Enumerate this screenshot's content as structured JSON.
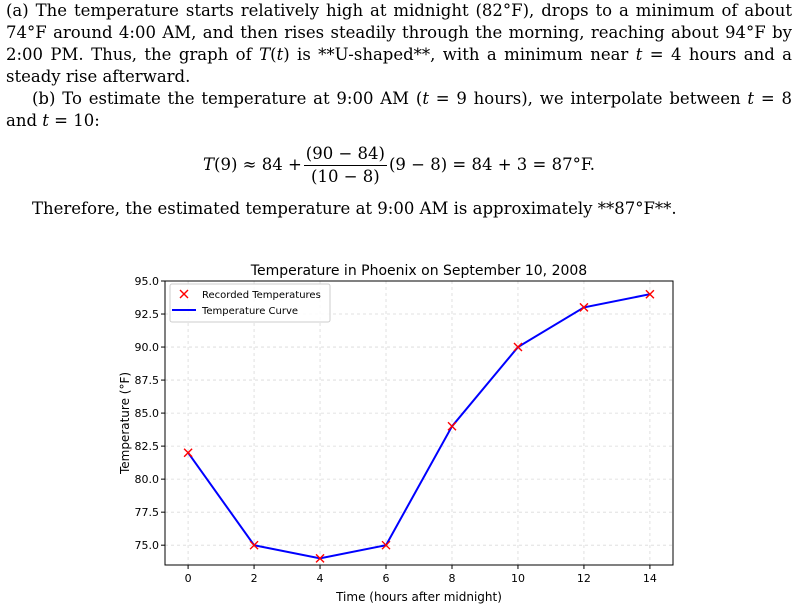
{
  "text": {
    "part_a_prefix": "(a) The temperature starts relatively high at midnight (82°F), drops to a minimum of about 74°F around 4:00 AM, and then rises steadily through the morning, reaching about 94°F by 2:00 PM. Thus, the graph of ",
    "part_a_T": "T",
    "part_a_t_paren_open": "(",
    "part_a_t": "t",
    "part_a_t_paren_close": ")",
    "part_a_mid": " is **U-shaped**, with a minimum near ",
    "part_a_t2": "t",
    "part_a_suffix": " = 4 hours and a steady rise afterward.",
    "part_b_prefix": "(b) To estimate the temperature at 9:00 AM (",
    "part_b_t1": "t",
    "part_b_mid1": " = 9 hours), we interpolate between ",
    "part_b_t2": "t",
    "part_b_mid2": " = 8 and ",
    "part_b_t3": "t",
    "part_b_suffix": " = 10:",
    "eq_T": "T",
    "eq_left": "(9) ≈ 84 +",
    "eq_num": "(90 − 84)",
    "eq_den": "(10 − 8)",
    "eq_right": "(9 − 8) = 84 + 3 = 87°F.",
    "conclusion": "Therefore, the estimated temperature at 9:00 AM is approximately **87°F**."
  },
  "chart_data": {
    "type": "line",
    "title": "Temperature in Phoenix on September 10, 2008",
    "xlabel": "Time (hours after midnight)",
    "ylabel": "Temperature (°F)",
    "x": [
      0,
      2,
      4,
      6,
      8,
      10,
      12,
      14
    ],
    "y": [
      82,
      75,
      74,
      75,
      84,
      90,
      93,
      94
    ],
    "xticks": [
      0,
      2,
      4,
      6,
      8,
      10,
      12,
      14
    ],
    "yticks": [
      75.0,
      77.5,
      80.0,
      82.5,
      85.0,
      87.5,
      90.0,
      92.5,
      95.0
    ],
    "ytick_labels": [
      "75.0",
      "77.5",
      "80.0",
      "82.5",
      "85.0",
      "87.5",
      "90.0",
      "92.5",
      "95.0"
    ],
    "xlim": [
      -0.7,
      14.7
    ],
    "ylim": [
      73.5,
      95.0
    ],
    "grid": true,
    "legend_position": "top-left",
    "legend": [
      "Recorded Temperatures",
      "Temperature Curve"
    ],
    "colors": {
      "line": "#0000ff",
      "marker": "#ff0000",
      "grid": "#d9d9d9",
      "axis": "#000000"
    }
  }
}
